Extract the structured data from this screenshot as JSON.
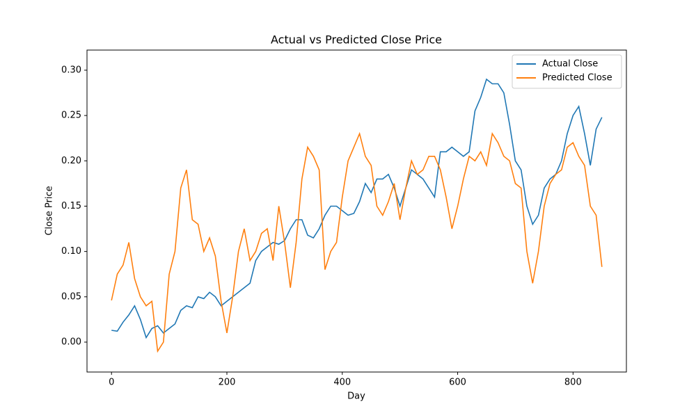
{
  "chart_data": {
    "type": "line",
    "title": "Actual vs Predicted Close Price",
    "x_label": "Day",
    "y_label": "Close Price",
    "x": [
      0,
      10,
      20,
      30,
      40,
      50,
      60,
      70,
      80,
      90,
      100,
      110,
      120,
      130,
      140,
      150,
      160,
      170,
      180,
      190,
      200,
      210,
      220,
      230,
      240,
      250,
      260,
      270,
      280,
      290,
      300,
      310,
      320,
      330,
      340,
      350,
      360,
      370,
      380,
      390,
      400,
      410,
      420,
      430,
      440,
      450,
      460,
      470,
      480,
      490,
      500,
      510,
      520,
      530,
      540,
      550,
      560,
      570,
      580,
      590,
      600,
      610,
      620,
      630,
      640,
      650,
      660,
      670,
      680,
      690,
      700,
      710,
      720,
      730,
      740,
      750,
      760,
      770,
      780,
      790,
      800,
      810,
      820,
      830,
      840,
      850
    ],
    "series": [
      {
        "name": "Actual Close",
        "color": "#1f77b4",
        "values": [
          0.013,
          0.012,
          0.022,
          0.03,
          0.04,
          0.025,
          0.005,
          0.015,
          0.018,
          0.01,
          0.015,
          0.02,
          0.035,
          0.04,
          0.038,
          0.05,
          0.048,
          0.055,
          0.05,
          0.04,
          0.045,
          0.05,
          0.055,
          0.06,
          0.065,
          0.09,
          0.1,
          0.105,
          0.11,
          0.108,
          0.112,
          0.125,
          0.135,
          0.135,
          0.118,
          0.115,
          0.125,
          0.14,
          0.15,
          0.15,
          0.145,
          0.14,
          0.142,
          0.155,
          0.175,
          0.165,
          0.18,
          0.18,
          0.185,
          0.17,
          0.15,
          0.17,
          0.19,
          0.185,
          0.18,
          0.17,
          0.16,
          0.21,
          0.21,
          0.215,
          0.21,
          0.205,
          0.21,
          0.255,
          0.27,
          0.29,
          0.285,
          0.285,
          0.275,
          0.24,
          0.2,
          0.19,
          0.15,
          0.13,
          0.14,
          0.17,
          0.18,
          0.185,
          0.2,
          0.23,
          0.25,
          0.26,
          0.23,
          0.195,
          0.235,
          0.248
        ]
      },
      {
        "name": "Predicted Close",
        "color": "#ff7f0e",
        "values": [
          0.046,
          0.075,
          0.085,
          0.11,
          0.07,
          0.05,
          0.04,
          0.045,
          -0.01,
          0.0,
          0.075,
          0.1,
          0.17,
          0.19,
          0.135,
          0.13,
          0.1,
          0.115,
          0.095,
          0.045,
          0.01,
          0.05,
          0.1,
          0.125,
          0.09,
          0.1,
          0.12,
          0.125,
          0.09,
          0.15,
          0.11,
          0.06,
          0.11,
          0.18,
          0.215,
          0.205,
          0.19,
          0.08,
          0.1,
          0.11,
          0.16,
          0.2,
          0.215,
          0.23,
          0.205,
          0.195,
          0.15,
          0.14,
          0.155,
          0.175,
          0.135,
          0.17,
          0.2,
          0.185,
          0.19,
          0.205,
          0.205,
          0.19,
          0.16,
          0.125,
          0.15,
          0.18,
          0.205,
          0.2,
          0.21,
          0.195,
          0.23,
          0.22,
          0.205,
          0.2,
          0.175,
          0.17,
          0.1,
          0.065,
          0.1,
          0.15,
          0.175,
          0.185,
          0.19,
          0.215,
          0.22,
          0.205,
          0.195,
          0.15,
          0.14,
          0.083
        ]
      }
    ],
    "xlim": [
      -42.5,
      892.5
    ],
    "ylim": [
      -0.033,
      0.3222
    ],
    "xticks": [
      0,
      200,
      400,
      600,
      800
    ],
    "yticks": [
      {
        "value": 0,
        "label": "0.00"
      },
      0.05,
      {
        "value": 0.1,
        "label": "0.10"
      },
      0.15,
      {
        "value": 0.2,
        "label": "0.20"
      },
      0.25,
      {
        "value": 0.3,
        "label": "0.30"
      }
    ],
    "legend": "upper right"
  }
}
